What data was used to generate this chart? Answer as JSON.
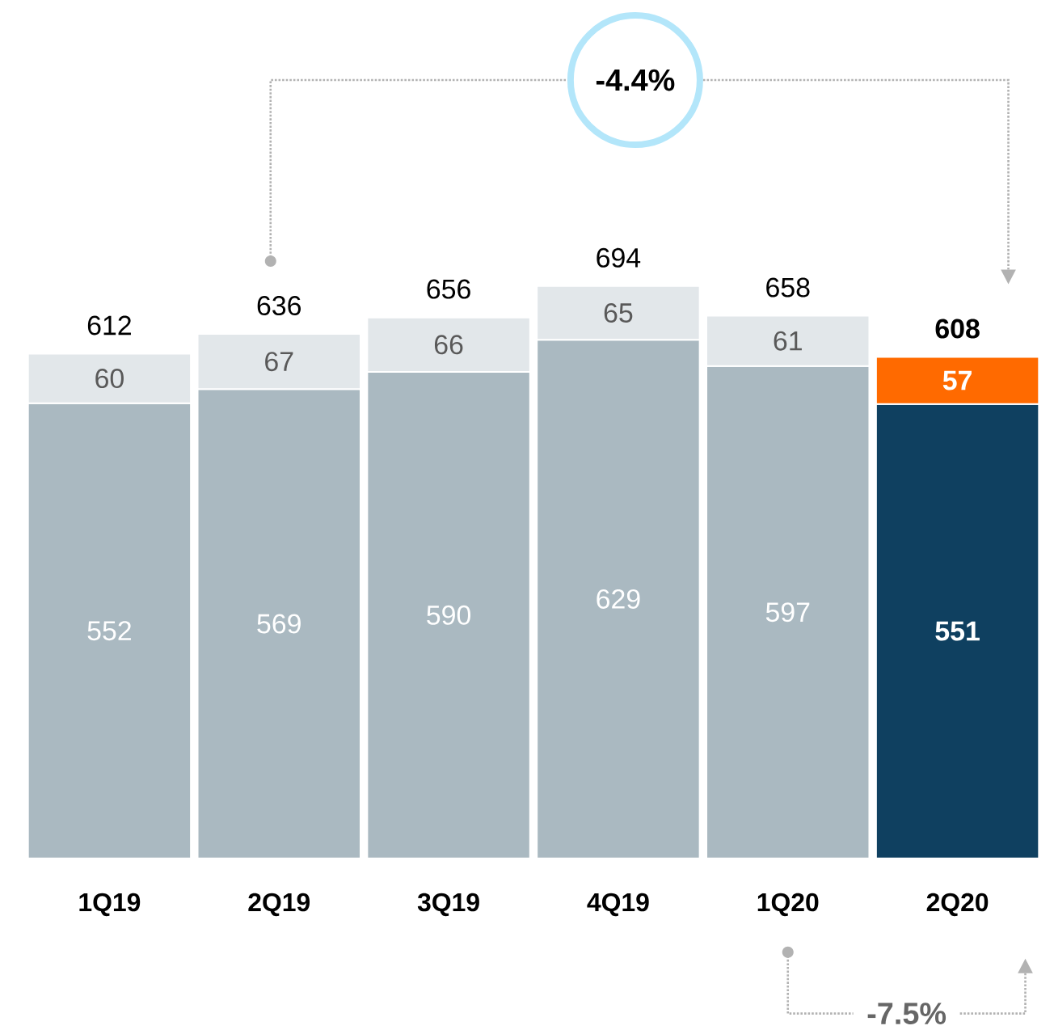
{
  "chart_data": {
    "type": "bar",
    "stacked": true,
    "data_labels": true,
    "categories": [
      "1Q19",
      "2Q19",
      "3Q19",
      "4Q19",
      "1Q20",
      "2Q20"
    ],
    "series": [
      {
        "color": "#aab9c1",
        "colors": [
          "#aab9c1",
          "#aab9c1",
          "#aab9c1",
          "#aab9c1",
          "#aab9c1",
          "#0f4060"
        ],
        "values": [
          552,
          569,
          590,
          629,
          597,
          551
        ]
      },
      {
        "color": "#e2e7ea",
        "colors": [
          "#e2e7ea",
          "#e2e7ea",
          "#e2e7ea",
          "#e2e7ea",
          "#e2e7ea",
          "#ff6a00"
        ],
        "values": [
          60,
          67,
          66,
          65,
          61,
          57
        ]
      }
    ],
    "totals": [
      "612",
      "636",
      "656",
      "694",
      "658",
      "608"
    ],
    "annotations": [
      "-4.4%",
      "-7.5%"
    ]
  }
}
